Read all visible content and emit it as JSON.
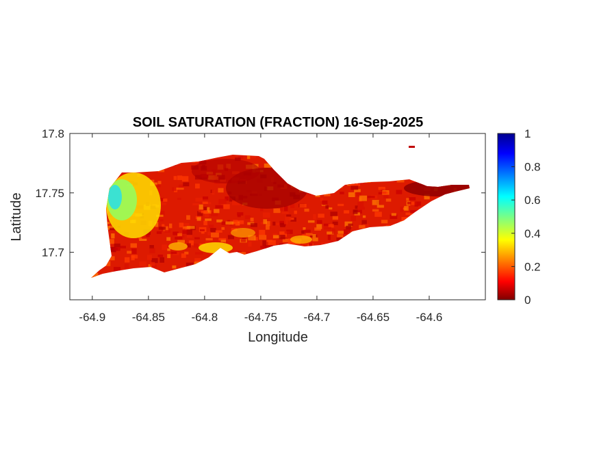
{
  "title": "SOIL SATURATION (FRACTION) 16-Sep-2025",
  "xlabel": "Longitude",
  "ylabel": "Latitude",
  "x_ticks": [
    "-64.9",
    "-64.85",
    "-64.8",
    "-64.75",
    "-64.7",
    "-64.65",
    "-64.6"
  ],
  "y_ticks": [
    "17.8",
    "17.75",
    "17.7"
  ],
  "colorbar": {
    "colormap": "jet",
    "range": [
      0,
      1
    ],
    "ticks": [
      "1",
      "0.8",
      "0.6",
      "0.4",
      "0.2",
      "0"
    ]
  },
  "chart_data": {
    "type": "heatmap",
    "title": "SOIL SATURATION (FRACTION) 16-Sep-2025",
    "xlabel": "Longitude",
    "ylabel": "Latitude",
    "xlim": [
      -64.92,
      -64.55
    ],
    "ylim": [
      17.66,
      17.8
    ],
    "x_ticks": [
      -64.9,
      -64.85,
      -64.8,
      -64.75,
      -64.7,
      -64.65,
      -64.6
    ],
    "y_ticks": [
      17.8,
      17.75,
      17.7
    ],
    "colorbar_range": [
      0,
      1
    ],
    "colormap": "jet",
    "grid": false,
    "regions": [
      {
        "area": "western end",
        "approx_value": 0.55
      },
      {
        "area": "central",
        "approx_value": 0.15
      },
      {
        "area": "eastern end",
        "approx_value": 0.05
      }
    ]
  }
}
